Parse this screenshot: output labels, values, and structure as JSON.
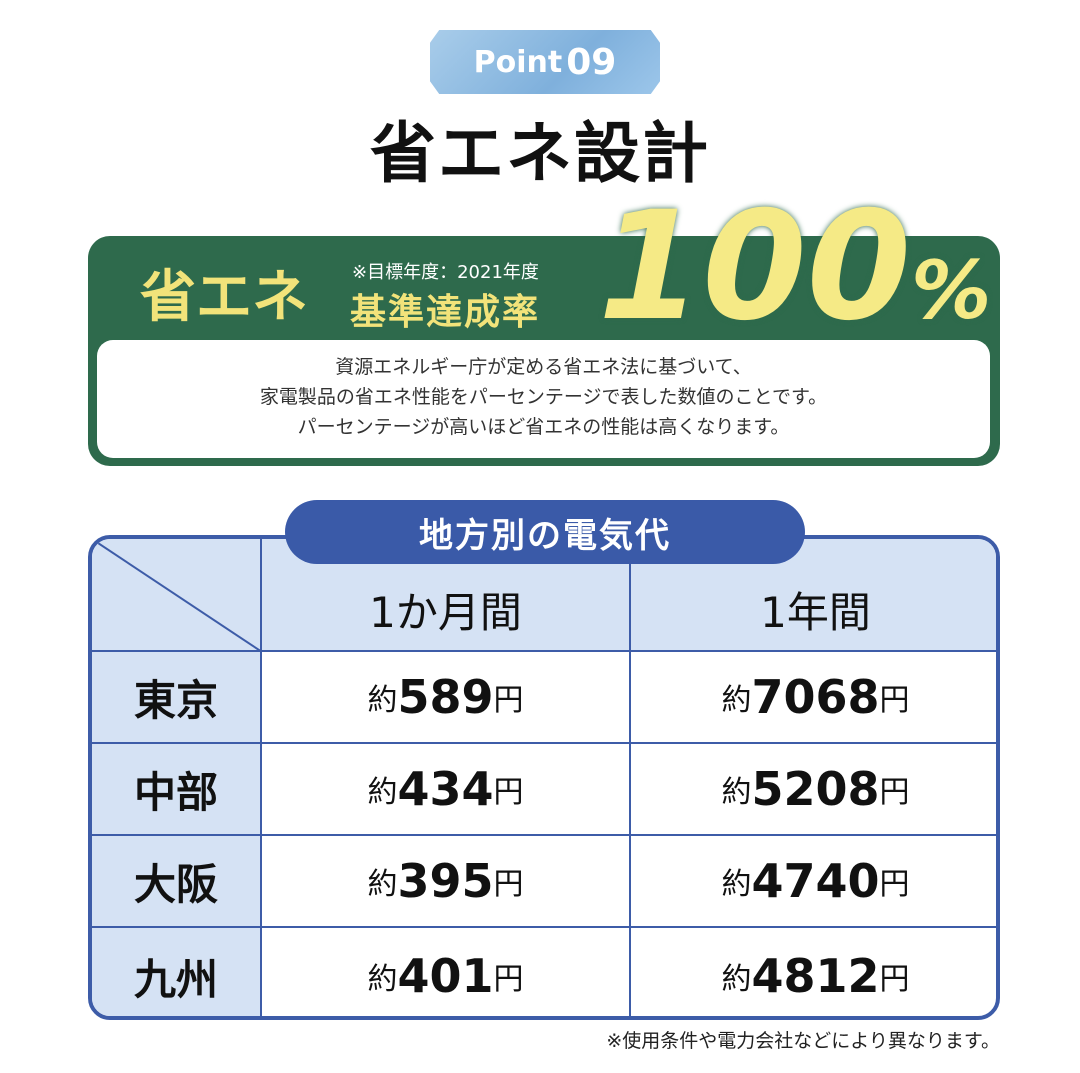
{
  "badge": {
    "label": "Point",
    "number": "09"
  },
  "title": "省エネ設計",
  "energy": {
    "label": "省エネ",
    "note": "※目標年度：2021年度",
    "sub": "基準達成率",
    "value": "100",
    "unit": "%",
    "description": [
      "資源エネルギー庁が定める省エネ法に基づいて、",
      "家電製品の省エネ性能をパーセンテージで表した数値のことです。",
      "パーセンテージが高いほど省エネの性能は高くなります。"
    ]
  },
  "table": {
    "title": "地方別の電気代",
    "columns": [
      "1か月間",
      "1年間"
    ],
    "prefix": "約",
    "suffix": "円",
    "rows": [
      {
        "region": "東京",
        "month": "589",
        "year": "7068"
      },
      {
        "region": "中部",
        "month": "434",
        "year": "5208"
      },
      {
        "region": "大阪",
        "month": "395",
        "year": "4740"
      },
      {
        "region": "九州",
        "month": "401",
        "year": "4812"
      }
    ]
  },
  "footnote": "※使用条件や電力会社などにより異なります。",
  "colors": {
    "green": "#2e6a4c",
    "yellow": "#f2e37a",
    "blue": "#3a5aa8",
    "light_blue": "#d5e2f4"
  }
}
